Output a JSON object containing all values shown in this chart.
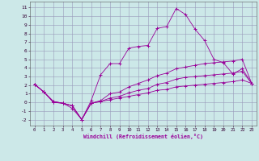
{
  "xlabel": "Windchill (Refroidissement éolien,°C)",
  "bg_color": "#cce8e8",
  "grid_color": "#9999bb",
  "line_color": "#990099",
  "xlim": [
    -0.5,
    23.5
  ],
  "ylim": [
    -2.7,
    11.7
  ],
  "xticks": [
    0,
    1,
    2,
    3,
    4,
    5,
    6,
    7,
    8,
    9,
    10,
    11,
    12,
    13,
    14,
    15,
    16,
    17,
    18,
    19,
    20,
    21,
    22,
    23
  ],
  "yticks": [
    -2,
    -1,
    0,
    1,
    2,
    3,
    4,
    5,
    6,
    7,
    8,
    9,
    10,
    11
  ],
  "s1_x": [
    0,
    1,
    2,
    3,
    4,
    5,
    6,
    7,
    8,
    9,
    10,
    11,
    12,
    13,
    14,
    15,
    16,
    17,
    18,
    19,
    20,
    21,
    22,
    23
  ],
  "s1_y": [
    2.1,
    1.2,
    0.1,
    -0.1,
    -0.7,
    -2.0,
    0.2,
    3.2,
    4.5,
    4.5,
    6.3,
    6.5,
    6.6,
    8.6,
    8.8,
    10.9,
    10.2,
    8.5,
    7.2,
    5.0,
    4.6,
    3.3,
    3.9,
    2.2
  ],
  "s2_x": [
    0,
    1,
    2,
    3,
    4,
    5,
    6,
    7,
    8,
    9,
    10,
    11,
    12,
    13,
    14,
    15,
    16,
    17,
    18,
    19,
    20,
    21,
    22,
    23
  ],
  "s2_y": [
    2.1,
    1.2,
    0.1,
    -0.1,
    -0.4,
    -2.0,
    -0.1,
    0.2,
    1.0,
    1.2,
    1.8,
    2.2,
    2.6,
    3.1,
    3.4,
    3.9,
    4.1,
    4.3,
    4.5,
    4.6,
    4.7,
    4.8,
    5.0,
    2.2
  ],
  "s3_x": [
    0,
    1,
    2,
    3,
    4,
    5,
    6,
    7,
    8,
    9,
    10,
    11,
    12,
    13,
    14,
    15,
    16,
    17,
    18,
    19,
    20,
    21,
    22,
    23
  ],
  "s3_y": [
    2.1,
    1.2,
    0.0,
    -0.1,
    -0.4,
    -2.0,
    -0.1,
    0.1,
    0.5,
    0.7,
    1.1,
    1.4,
    1.6,
    2.1,
    2.3,
    2.7,
    2.9,
    3.0,
    3.1,
    3.2,
    3.3,
    3.4,
    3.6,
    2.2
  ],
  "s4_x": [
    0,
    1,
    2,
    3,
    4,
    5,
    6,
    7,
    8,
    9,
    10,
    11,
    12,
    13,
    14,
    15,
    16,
    17,
    18,
    19,
    20,
    21,
    22,
    23
  ],
  "s4_y": [
    2.1,
    1.2,
    0.0,
    -0.1,
    -0.4,
    -2.0,
    -0.1,
    0.1,
    0.3,
    0.5,
    0.7,
    0.9,
    1.1,
    1.4,
    1.5,
    1.8,
    1.9,
    2.0,
    2.1,
    2.2,
    2.3,
    2.4,
    2.6,
    2.2
  ]
}
